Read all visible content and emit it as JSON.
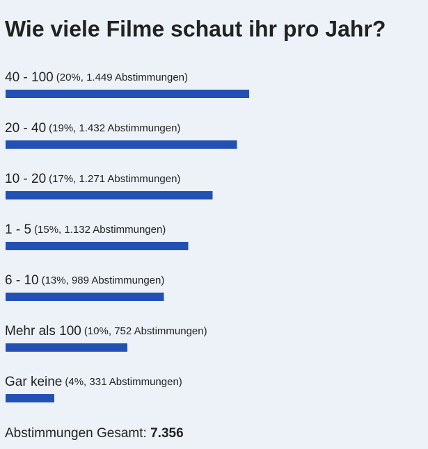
{
  "chart_data": {
    "type": "bar",
    "title": "Wie viele Filme schaut ihr pro Jahr?",
    "categories": [
      "40 - 100",
      "20 - 40",
      "10 - 20",
      "1 - 5",
      "6 - 10",
      "Mehr als 100",
      "Gar keine"
    ],
    "values": [
      20,
      19,
      17,
      15,
      13,
      10,
      4
    ],
    "value_labels": [
      "(20%, 1.449 Abstimmungen)",
      "(19%, 1.432 Abstimmungen)",
      "(17%, 1.271 Abstimmungen)",
      "(15%, 1.132 Abstimmungen)",
      "(13%, 989 Abstimmungen)",
      "(10%, 752 Abstimmungen)",
      "(4%, 331 Abstimmungen)"
    ],
    "color": "#2251b3",
    "total_label": "Abstimmungen Gesamt:",
    "total": "7.356"
  }
}
